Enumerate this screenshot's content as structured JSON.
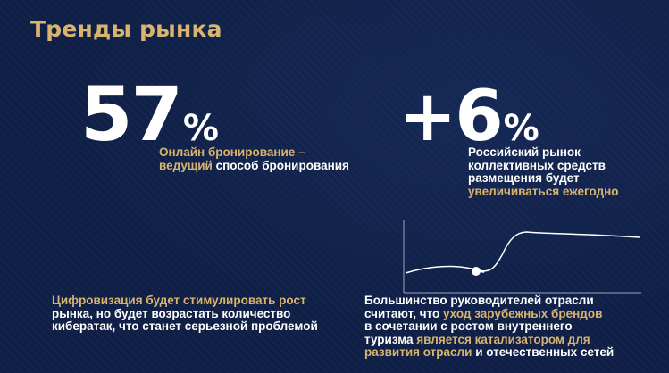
{
  "title": "Тренды рынка",
  "colors": {
    "background": "#0f1f46",
    "accent": "#d9b46f",
    "text": "#ffffff",
    "axis": "#9aa3b8"
  },
  "stat1": {
    "value": "57",
    "unit": "%",
    "caption": {
      "part1": "Онлайн бронирование –",
      "part2": "ведущий",
      "part3": " способ бронирования"
    }
  },
  "stat2": {
    "value": "+6",
    "unit": "%",
    "caption": {
      "line1": "Российский рынок",
      "line2": "коллективных средств",
      "line3": "размещения будет",
      "line4": "увеличиваться ежегодно"
    }
  },
  "block3": {
    "part1": "Цифровизация будет стимулировать рост",
    "part2": "рынка, но будет возрастать количество",
    "part3": "кибератак, что станет серьезной проблемой"
  },
  "block4": {
    "t1": "Большинство руководителей отрасли",
    "t2": "считают, что ",
    "t3": "уход зарубежных брендов",
    "t4": "в сочетании с ростом внутреннего",
    "t5": "туризма ",
    "t6": "является катализатором для",
    "t7": "развития отрасли",
    "t8": " и отечественных сетей"
  },
  "chart_icon": "growth-curve-icon"
}
